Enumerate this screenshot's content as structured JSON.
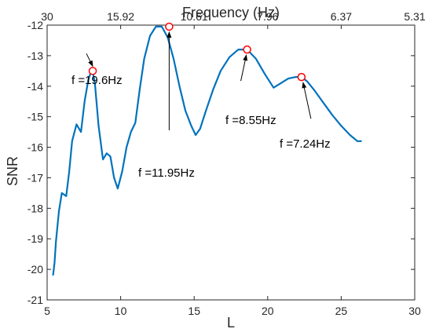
{
  "chart_data": {
    "type": "line",
    "title": "",
    "xlabel": "L",
    "ylabel": "SNR",
    "top_axis_label": "Frequency (Hz)",
    "xlim": [
      5,
      30
    ],
    "ylim": [
      -21,
      -12
    ],
    "x_ticks": [
      5,
      10,
      15,
      20,
      25,
      30
    ],
    "x_tick_labels": [
      "5",
      "10",
      "15",
      "20",
      "25",
      "30"
    ],
    "y_ticks": [
      -21,
      -20,
      -19,
      -18,
      -17,
      -16,
      -15,
      -14,
      -13,
      -12
    ],
    "y_tick_labels": [
      "-21",
      "-20",
      "-19",
      "-18",
      "-17",
      "-16",
      "-15",
      "-14",
      "-13",
      "-12"
    ],
    "top_ticks": [
      5,
      10,
      15,
      20,
      25,
      30
    ],
    "top_tick_labels": [
      "30",
      "15.92",
      "10.61",
      "7.96",
      "6.37",
      "5.31"
    ],
    "grid": false,
    "colors": {
      "line": "#0072BD",
      "marker": "#FF0000",
      "axis": "#262626"
    },
    "series": [
      {
        "x": [
          5.4,
          5.5,
          5.6,
          5.8,
          6.0,
          6.3,
          6.5,
          6.7,
          7.0,
          7.3,
          7.55,
          7.8,
          8.0,
          8.1,
          8.25,
          8.5,
          8.8,
          9.05,
          9.3,
          9.55,
          9.8,
          10.1,
          10.4,
          10.7,
          11.0,
          11.3,
          11.6,
          12.0,
          12.4,
          12.8,
          13.2,
          13.6,
          14.0,
          14.4,
          14.8,
          15.1,
          15.4,
          15.8,
          16.3,
          16.8,
          17.4,
          18.0,
          18.6,
          19.2,
          19.8,
          20.4,
          20.9,
          21.4,
          21.9,
          22.3,
          22.7,
          23.2,
          23.8,
          24.4,
          25.0,
          25.6,
          26.1,
          26.4
        ],
        "y": [
          -20.2,
          -19.8,
          -19.1,
          -18.1,
          -17.5,
          -17.6,
          -16.8,
          -15.8,
          -15.25,
          -15.5,
          -14.5,
          -13.8,
          -13.5,
          -13.5,
          -13.9,
          -15.3,
          -16.4,
          -16.2,
          -16.3,
          -17.0,
          -17.35,
          -16.8,
          -16.0,
          -15.5,
          -15.2,
          -14.1,
          -13.1,
          -12.35,
          -12.05,
          -12.05,
          -12.4,
          -13.1,
          -14.0,
          -14.8,
          -15.3,
          -15.6,
          -15.4,
          -14.8,
          -14.1,
          -13.5,
          -13.05,
          -12.8,
          -12.8,
          -13.1,
          -13.6,
          -14.05,
          -13.9,
          -13.75,
          -13.7,
          -13.7,
          -13.85,
          -14.15,
          -14.55,
          -14.95,
          -15.3,
          -15.6,
          -15.8,
          -15.8
        ]
      }
    ],
    "peaks": [
      {
        "x": 8.1,
        "y": -13.5,
        "label": "f =19.6Hz"
      },
      {
        "x": 13.3,
        "y": -12.05,
        "label": "f =11.95Hz"
      },
      {
        "x": 18.6,
        "y": -12.8,
        "label": "f =8.55Hz"
      },
      {
        "x": 22.3,
        "y": -13.7,
        "label": "f =7.24Hz"
      }
    ]
  }
}
